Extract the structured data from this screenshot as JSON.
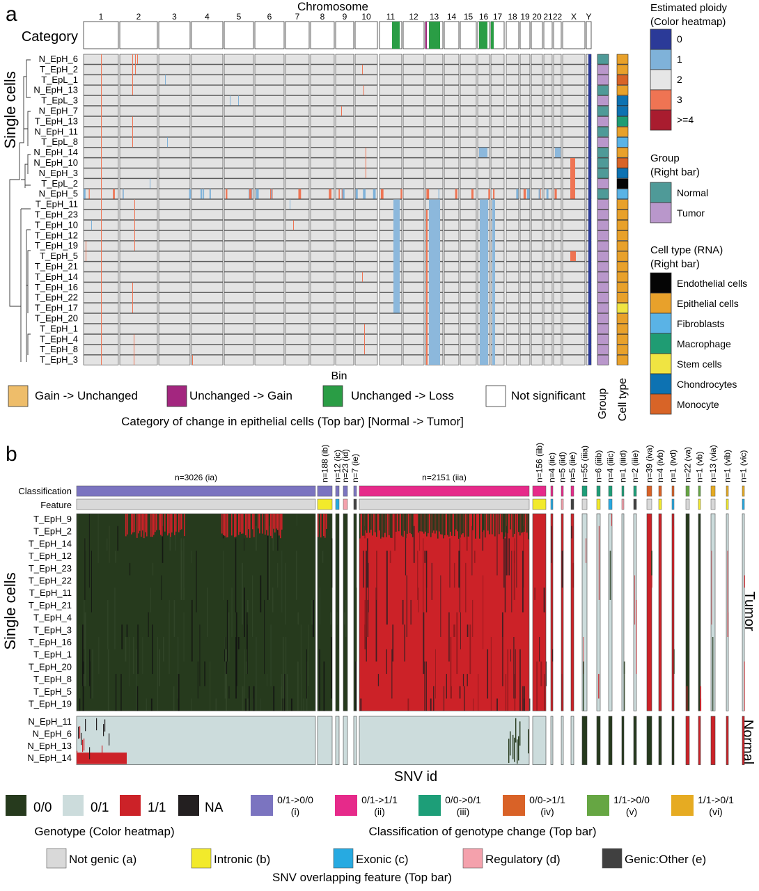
{
  "panel_a": {
    "label": "a",
    "chromosome_title": "Chromosome",
    "chromosomes": [
      "1",
      "2",
      "3",
      "4",
      "5",
      "6",
      "7",
      "8",
      "9",
      "10",
      "11",
      "12",
      "13",
      "14",
      "15",
      "16",
      "17",
      "18",
      "19",
      "20",
      "21",
      "22",
      "X",
      "Y"
    ],
    "category_label": "Category",
    "y_label": "Single cells",
    "x_label": "Bin",
    "cells": [
      "N_EpH_6",
      "T_EpH_2",
      "T_EpL_1",
      "N_EpH_13",
      "T_EpL_3",
      "N_EpH_7",
      "T_EpH_13",
      "N_EpH_11",
      "T_EpL_8",
      "N_EpH_14",
      "N_EpH_10",
      "N_EpH_3",
      "T_EpL_2",
      "N_EpH_5",
      "T_EpH_11",
      "T_EpH_23",
      "T_EpH_10",
      "T_EpH_12",
      "T_EpH_19",
      "T_EpH_5",
      "T_EpH_21",
      "T_EpH_14",
      "T_EpH_16",
      "T_EpH_22",
      "T_EpH_17",
      "T_EpH_20",
      "T_EpH_1",
      "T_EpH_4",
      "T_EpH_8",
      "T_EpH_3"
    ],
    "category_legend_title": "Category of change in epithelial cells (Top bar) [Normal -> Tumor]",
    "category_legend": [
      {
        "label": "Gain -> Unchanged",
        "color": "#eebd6a"
      },
      {
        "label": "Unchanged -> Gain",
        "color": "#a3267f"
      },
      {
        "label": "Unchanged -> Loss",
        "color": "#2a9d45"
      },
      {
        "label": "Not significant",
        "color": "#ffffff"
      }
    ],
    "ploidy_legend_title": [
      "Estimated ploidy",
      "(Color heatmap)"
    ],
    "ploidy_legend": [
      {
        "label": "0",
        "color": "#2b3a98"
      },
      {
        "label": "1",
        "color": "#7fb2d9"
      },
      {
        "label": "2",
        "color": "#e6e6e6"
      },
      {
        "label": "3",
        "color": "#ef7453"
      },
      {
        "label": ">=4",
        "color": "#a91c2f"
      }
    ],
    "group_legend_title": [
      "Group",
      "(Right bar)"
    ],
    "group_legend": [
      {
        "label": "Normal",
        "color": "#4f9a98"
      },
      {
        "label": "Tumor",
        "color": "#b997cb"
      }
    ],
    "celltype_legend_title": [
      "Cell type (RNA)",
      "(Right bar)"
    ],
    "celltype_legend": [
      {
        "label": "Endothelial cells",
        "color": "#050505"
      },
      {
        "label": "Epithelial cells",
        "color": "#e8a12b"
      },
      {
        "label": "Fibroblasts",
        "color": "#5ab3e6"
      },
      {
        "label": "Macrophage",
        "color": "#1f9c73"
      },
      {
        "label": "Stem cells",
        "color": "#f0e442"
      },
      {
        "label": "Chondrocytes",
        "color": "#0d72b2"
      },
      {
        "label": "Monocyte",
        "color": "#d86427"
      }
    ],
    "group_axis_label": "Group",
    "celltype_axis_label": "Cell type"
  },
  "panel_b": {
    "label": "b",
    "classification_label": "Classification",
    "feature_label": "Feature",
    "y_label": "Single cells",
    "x_label": "SNV id",
    "tumor_label": "Tumor",
    "normal_label": "Normal",
    "tumor_cells": [
      "T_EpH_9",
      "T_EpH_2",
      "T_EpH_14",
      "T_EpH_12",
      "T_EpH_23",
      "T_EpH_22",
      "T_EpH_11",
      "T_EpH_21",
      "T_EpH_4",
      "T_EpH_3",
      "T_EpH_16",
      "T_EpH_1",
      "T_EpH_20",
      "T_EpH_8",
      "T_EpH_5",
      "T_EpH_19"
    ],
    "normal_cells": [
      "N_EpH_11",
      "N_EpH_6",
      "N_EpH_13",
      "N_EpH_14"
    ],
    "block_labels": [
      {
        "text": "n=3026 (ia)",
        "angle": 0
      },
      {
        "text": "n=188 (ib)",
        "angle": -90
      },
      {
        "text": "n=12 (ic)",
        "angle": -90
      },
      {
        "text": "n=23 (id)",
        "angle": -90
      },
      {
        "text": "n=7 (ie)",
        "angle": -90
      },
      {
        "text": "n=2151 (iia)",
        "angle": 0
      },
      {
        "text": "n=156 (iib)",
        "angle": -90
      },
      {
        "text": "n=4 (iic)",
        "angle": -90
      },
      {
        "text": "n=5 (iid)",
        "angle": -90
      },
      {
        "text": "n=5 (iie)",
        "angle": -90
      },
      {
        "text": "n=55 (iiia)",
        "angle": -90
      },
      {
        "text": "n=6 (iiib)",
        "angle": -90
      },
      {
        "text": "n=4 (iiic)",
        "angle": -90
      },
      {
        "text": "n=1 (iiid)",
        "angle": -90
      },
      {
        "text": "n=2 (iiie)",
        "angle": -90
      },
      {
        "text": "n=39 (iva)",
        "angle": -90
      },
      {
        "text": "n=4 (ivb)",
        "angle": -90
      },
      {
        "text": "n=1 (ivd)",
        "angle": -90
      },
      {
        "text": "n=22 (va)",
        "angle": -90
      },
      {
        "text": "n=1 (vb)",
        "angle": -90
      },
      {
        "text": "n=13 (via)",
        "angle": -90
      },
      {
        "text": "n=1 (vib)",
        "angle": -90
      },
      {
        "text": "n=1 (vic)",
        "angle": -90
      }
    ],
    "genotype_legend_title": "Genotype (Color heatmap)",
    "genotype_legend": [
      {
        "label": "0/0",
        "color": "#263a1d"
      },
      {
        "label": "0/1",
        "color": "#ccdcdc"
      },
      {
        "label": "1/1",
        "color": "#cc2228"
      },
      {
        "label": "NA",
        "color": "#231f20"
      }
    ],
    "classification_legend_title": "Classification of genotype change (Top bar)",
    "classification_legend": [
      {
        "label": [
          "0/1->0/0",
          "(i)"
        ],
        "color": "#7b74c0"
      },
      {
        "label": [
          "0/1->1/1",
          "(ii)"
        ],
        "color": "#e62a8a"
      },
      {
        "label": [
          "0/0->0/1",
          "(iii)"
        ],
        "color": "#1d9e78"
      },
      {
        "label": [
          "0/0->1/1",
          "(iv)"
        ],
        "color": "#d96227"
      },
      {
        "label": [
          "1/1->0/0",
          "(v)"
        ],
        "color": "#66a643"
      },
      {
        "label": [
          "1/1->0/1",
          "(vi)"
        ],
        "color": "#e6ab22"
      }
    ],
    "feature_legend_title": "SNV overlapping feature (Top bar)",
    "feature_legend": [
      {
        "label": "Not genic (a)",
        "color": "#d9d9d9"
      },
      {
        "label": "Intronic (b)",
        "color": "#f2ea2b"
      },
      {
        "label": "Exonic (c)",
        "color": "#27aae1"
      },
      {
        "label": "Regulatory (d)",
        "color": "#f4a1ac"
      },
      {
        "label": "Genic:Other (e)",
        "color": "#404040"
      }
    ]
  }
}
